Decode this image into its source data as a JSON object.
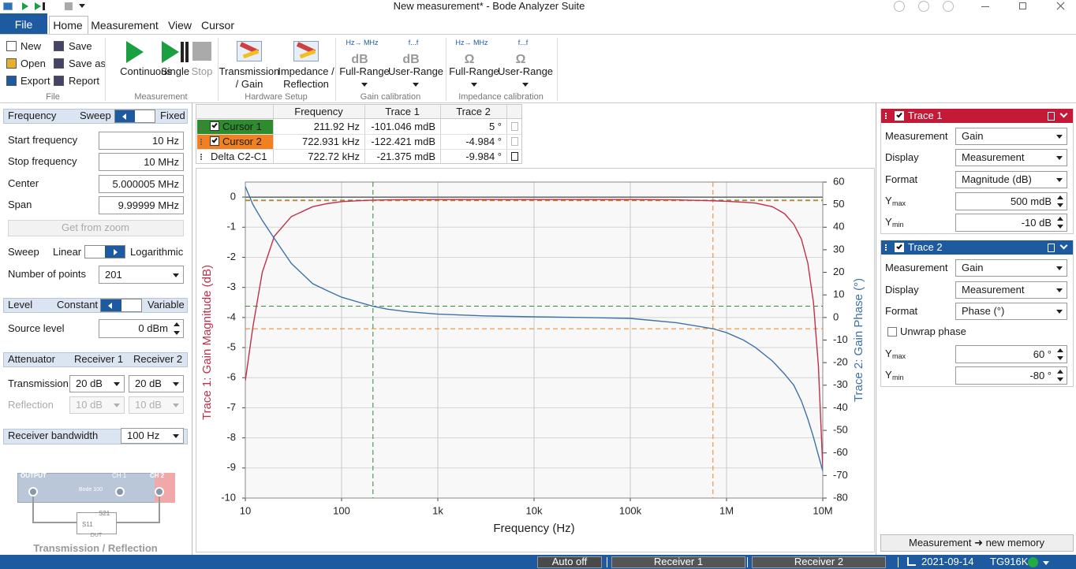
{
  "window": {
    "title": "New measurement* - Bode Analyzer Suite"
  },
  "menu": {
    "file": "File",
    "tabs": [
      "Home",
      "Measurement",
      "View",
      "Cursor"
    ]
  },
  "ribbon": {
    "file": {
      "label": "File",
      "items": [
        "New",
        "Save",
        "Open",
        "Save as",
        "Export",
        "Report"
      ]
    },
    "measurement": {
      "label": "Measurement",
      "items": [
        "Continuous",
        "Single",
        "Stop"
      ]
    },
    "hardware": {
      "label": "Hardware Setup",
      "items": [
        [
          "Transmission",
          "/ Gain"
        ],
        [
          "Impedance /",
          "Reflection"
        ]
      ]
    },
    "gain_cal": {
      "label": "Gain calibration",
      "items": [
        {
          "icon_top": "Hz→ MHz",
          "icon": "dB",
          "label": "Full-Range"
        },
        {
          "icon_top": "f...f",
          "icon": "dB",
          "label": "User-Range"
        }
      ]
    },
    "impedance_cal": {
      "label": "Impedance calibration",
      "items": [
        {
          "icon_top": "Hz→ MHz",
          "icon": "Ω",
          "label": "Full-Range"
        },
        {
          "icon_top": "f...f",
          "icon": "Ω",
          "label": "User-Range"
        }
      ]
    }
  },
  "frequency": {
    "header": "Frequency",
    "mode": [
      "Sweep",
      "Fixed"
    ],
    "fields": [
      {
        "label": "Start frequency",
        "value": "10 Hz"
      },
      {
        "label": "Stop frequency",
        "value": "10 MHz"
      },
      {
        "label": "Center",
        "value": "5.000005 MHz"
      },
      {
        "label": "Span",
        "value": "9.99999 MHz"
      }
    ],
    "zoom_button": "Get from zoom",
    "sweep": {
      "label": "Sweep",
      "options": [
        "Linear",
        "Logarithmic"
      ]
    },
    "points": {
      "label": "Number of points",
      "value": "201"
    }
  },
  "level": {
    "header": "Level",
    "mode": [
      "Constant",
      "Variable"
    ],
    "source": {
      "label": "Source level",
      "value": "0 dBm"
    }
  },
  "attenuator": {
    "header": "Attenuator",
    "columns": [
      "Receiver 1",
      "Receiver 2"
    ],
    "rows": [
      {
        "label": "Transmission",
        "values": [
          "20 dB",
          "20 dB"
        ]
      },
      {
        "label": "Reflection",
        "values": [
          "10 dB",
          "10 dB"
        ]
      }
    ]
  },
  "bandwidth": {
    "label": "Receiver bandwidth",
    "value": "100 Hz"
  },
  "diagram": {
    "output": "OUTPUT",
    "ch1": "CH 1",
    "ch2": "CH 2",
    "device": "Bode 100",
    "dut": "DUT",
    "ports": [
      "S21",
      "S11"
    ],
    "caption": "Transmission / Reflection"
  },
  "cursor_table": {
    "headers": [
      "Frequency",
      "Trace 1",
      "Trace 2"
    ],
    "rows": [
      {
        "name": "Cursor 1",
        "cells": [
          "211.92 Hz",
          "-101.046 mdB",
          "5 °"
        ]
      },
      {
        "name": "Cursor 2",
        "cells": [
          "722.931 kHz",
          "-122.421 mdB",
          "-4.984 °"
        ]
      },
      {
        "name": "Delta C2-C1",
        "cells": [
          "722.72 kHz",
          "-21.375 mdB",
          "-9.984 °"
        ]
      }
    ]
  },
  "plot": {
    "type": "line",
    "xlabel": "Frequency (Hz)",
    "ylabel": "Trace 1: Gain Magnitude (dB)",
    "y2label": "Trace 2: Gain Phase (°)",
    "xscale": "log",
    "xlim": [
      10,
      10000000
    ],
    "xticks": [
      10,
      100,
      {
        "value": 1000,
        "label": "1k"
      },
      {
        "value": 10000,
        "label": "10k"
      },
      {
        "value": 100000,
        "label": "100k"
      },
      {
        "value": 1000000,
        "label": "1M"
      },
      {
        "value": 10000000,
        "label": "10M"
      }
    ],
    "ylim": [
      -10,
      0.5
    ],
    "yticks": [
      0,
      -1,
      -2,
      -3,
      -4,
      -5,
      -6,
      -7,
      -8,
      -9,
      -10
    ],
    "y2lim": [
      -80,
      60
    ],
    "y2ticks": [
      60,
      50,
      40,
      30,
      20,
      10,
      0,
      -10,
      -20,
      -30,
      -40,
      -50,
      -60,
      -70,
      -80
    ],
    "grid": true,
    "x": [
      10,
      12,
      15,
      20,
      30,
      50,
      70,
      100,
      150,
      211.92,
      300,
      500,
      1000,
      3000,
      10000,
      30000,
      100000,
      300000,
      722931,
      1000000,
      1500000,
      2000000,
      3000000,
      4000000,
      5000000,
      6000000,
      7000000,
      8000000,
      9000000,
      10000000
    ],
    "series": [
      {
        "name": "Trace 1",
        "color": "#c0304a",
        "values": [
          -6.1,
          -4.3,
          -2.5,
          -1.3,
          -0.65,
          -0.32,
          -0.22,
          -0.15,
          -0.12,
          -0.101,
          -0.09,
          -0.085,
          -0.08,
          -0.08,
          -0.08,
          -0.08,
          -0.08,
          -0.09,
          -0.122,
          -0.14,
          -0.17,
          -0.2,
          -0.32,
          -0.55,
          -0.9,
          -1.4,
          -2.2,
          -3.5,
          -5.6,
          -9
        ]
      },
      {
        "name": "Trace 2",
        "color": "#3d72a8",
        "axis": "y2",
        "values": [
          58,
          50,
          43,
          35,
          24,
          15,
          12,
          9,
          6.8,
          5,
          3.7,
          2.5,
          1.5,
          0.7,
          0.3,
          0,
          -0.4,
          -2.3,
          -4.984,
          -6.7,
          -10,
          -13.3,
          -19.3,
          -25,
          -30,
          -37,
          -45,
          -53,
          -61,
          -68
        ]
      }
    ],
    "cursors": [
      {
        "x": 211.92,
        "gain": -0.101046,
        "phase": 5,
        "color": "#2e8b2e"
      },
      {
        "x": 722931,
        "gain": -0.122421,
        "phase": -4.984,
        "color": "#f08020"
      }
    ]
  },
  "traces": [
    {
      "title": "Trace 1",
      "color": "#c51a37",
      "fields": [
        {
          "label": "Measurement",
          "value": "Gain"
        },
        {
          "label": "Display",
          "value": "Measurement"
        },
        {
          "label": "Format",
          "value": "Magnitude (dB)"
        }
      ],
      "ymax": {
        "label": "Y",
        "sub": "max",
        "value": "500 mdB"
      },
      "ymin": {
        "label": "Y",
        "sub": "min",
        "value": "-10 dB"
      }
    },
    {
      "title": "Trace 2",
      "color": "#1e5aa0",
      "fields": [
        {
          "label": "Measurement",
          "value": "Gain"
        },
        {
          "label": "Display",
          "value": "Measurement"
        },
        {
          "label": "Format",
          "value": "Phase (°)"
        }
      ],
      "checkbox": "Unwrap phase",
      "ymax": {
        "label": "Y",
        "sub": "max",
        "value": "60 °"
      },
      "ymin": {
        "label": "Y",
        "sub": "min",
        "value": "-80 °"
      }
    }
  ],
  "memory_button": "Measurement ➜ new memory",
  "status": {
    "auto": "Auto off",
    "receivers": [
      "Receiver 1",
      "Receiver 2"
    ],
    "date": "2021-09-14",
    "device": "TG916K"
  }
}
